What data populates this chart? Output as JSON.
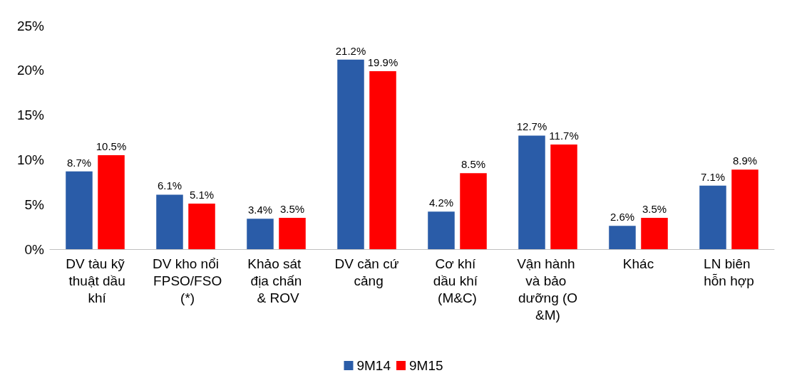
{
  "chart_data": {
    "type": "bar",
    "categories": [
      "DV tàu kỹ thuật dầu khí",
      "DV kho nổi FPSO/FSO (*)",
      "Khảo sát địa chấn & ROV",
      "DV căn cứ cảng",
      "Cơ khí dầu khí (M&C)",
      "Vận hành và bảo dưỡng (O&M)",
      "Khác",
      "LN biên hỗn hợp"
    ],
    "series": [
      {
        "name": "9M14",
        "color": "#2a5ca8",
        "values": [
          8.7,
          6.1,
          3.4,
          21.2,
          4.2,
          12.7,
          2.6,
          7.1
        ],
        "value_labels": [
          "8.7%",
          "6.1%",
          "3.4%",
          "21.2%",
          "4.2%",
          "12.7%",
          "2.6%",
          "7.1%"
        ]
      },
      {
        "name": "9M15",
        "color": "#ff0000",
        "values": [
          10.5,
          5.1,
          3.5,
          19.9,
          8.5,
          11.7,
          3.5,
          8.9
        ],
        "value_labels": [
          "10.5%",
          "5.1%",
          "3.5%",
          "19.9%",
          "8.5%",
          "11.7%",
          "3.5%",
          "8.9%"
        ]
      }
    ],
    "ylim": [
      0,
      25
    ],
    "yticks": [
      {
        "value": 0,
        "label": "0%"
      },
      {
        "value": 5,
        "label": "5%"
      },
      {
        "value": 10,
        "label": "10%"
      },
      {
        "value": 15,
        "label": "15%"
      },
      {
        "value": 20,
        "label": "20%"
      },
      {
        "value": 25,
        "label": "25%"
      }
    ],
    "grid": false,
    "legend": "bottom"
  }
}
